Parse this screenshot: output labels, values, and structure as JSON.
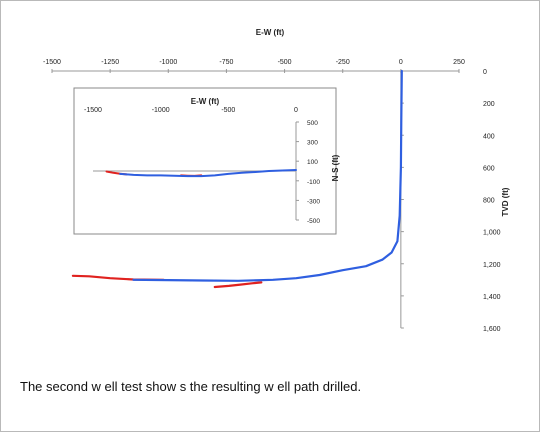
{
  "caption": "The second w ell test show s the resulting w ell path drilled.",
  "colors": {
    "planned": "#e0221f",
    "actual": "#2f5fe0",
    "axis": "#999999",
    "inset_border": "#8a8a8a"
  },
  "chart_data": [
    {
      "id": "vertical-section",
      "type": "line",
      "xlabel": "E-W (ft)",
      "ylabel": "TVD (ft)",
      "xlim": [
        -1500,
        250
      ],
      "ylim": [
        0,
        1600
      ],
      "y_inverted": true,
      "x_ticks": [
        -1500,
        -1250,
        -1000,
        -750,
        -500,
        -250,
        0,
        250
      ],
      "x_tick_labels": [
        "-1500",
        "-1250",
        "-1000",
        "-750",
        "-500",
        "-250",
        "0",
        "250"
      ],
      "y_ticks": [
        0,
        200,
        400,
        600,
        800,
        1000,
        1200,
        1400,
        1600
      ],
      "y_tick_labels": [
        "0",
        "200",
        "400",
        "600",
        "800",
        "1,000",
        "1,200",
        "1,400",
        "1,600"
      ],
      "series": [
        {
          "color": "#e0221f",
          "x": [
            -1410,
            -1340,
            -1250,
            -1150,
            -1020
          ],
          "y": [
            1275,
            1278,
            1290,
            1298,
            1300
          ]
        },
        {
          "color": "#e0221f",
          "x": [
            -800,
            -740,
            -690,
            -640,
            -600
          ],
          "y": [
            1345,
            1338,
            1330,
            1322,
            1316
          ]
        },
        {
          "color": "#2f5fe0",
          "x": [
            -1150,
            -1000,
            -850,
            -700,
            -550,
            -450,
            -350,
            -250,
            -150,
            -80,
            -40,
            -15,
            -5,
            0,
            2,
            4
          ],
          "y": [
            1300,
            1302,
            1304,
            1306,
            1300,
            1290,
            1270,
            1240,
            1215,
            1175,
            1130,
            1060,
            900,
            600,
            300,
            0
          ]
        }
      ]
    },
    {
      "id": "plan-view-inset",
      "type": "line",
      "xlabel": "E-W (ft)",
      "ylabel": "N-S (ft)",
      "xlim": [
        -1500,
        0
      ],
      "ylim": [
        -500,
        500
      ],
      "x_ticks": [
        -1500,
        -1000,
        -500,
        0
      ],
      "x_tick_labels": [
        "-1500",
        "-1000",
        "-500",
        "0"
      ],
      "y_ticks": [
        500,
        300,
        100,
        -100,
        -300,
        -500
      ],
      "y_tick_labels": [
        "500",
        "300",
        "100",
        "-100",
        "-300",
        "-500"
      ],
      "series": [
        {
          "color": "#e0221f",
          "x": [
            -1400,
            -1350,
            -1300,
            -1250
          ],
          "y": [
            -5,
            -18,
            -28,
            -35
          ]
        },
        {
          "color": "#e0221f",
          "x": [
            -850,
            -800,
            -750,
            -700
          ],
          "y": [
            -45,
            -48,
            -50,
            -45
          ]
        },
        {
          "color": "#2f5fe0",
          "x": [
            -1300,
            -1200,
            -1100,
            -1000,
            -900,
            -800,
            -700,
            -600,
            -500,
            -400,
            -300,
            -200,
            -100,
            0
          ],
          "y": [
            -30,
            -40,
            -45,
            -45,
            -48,
            -52,
            -52,
            -45,
            -30,
            -18,
            -10,
            0,
            5,
            10
          ]
        }
      ]
    }
  ]
}
